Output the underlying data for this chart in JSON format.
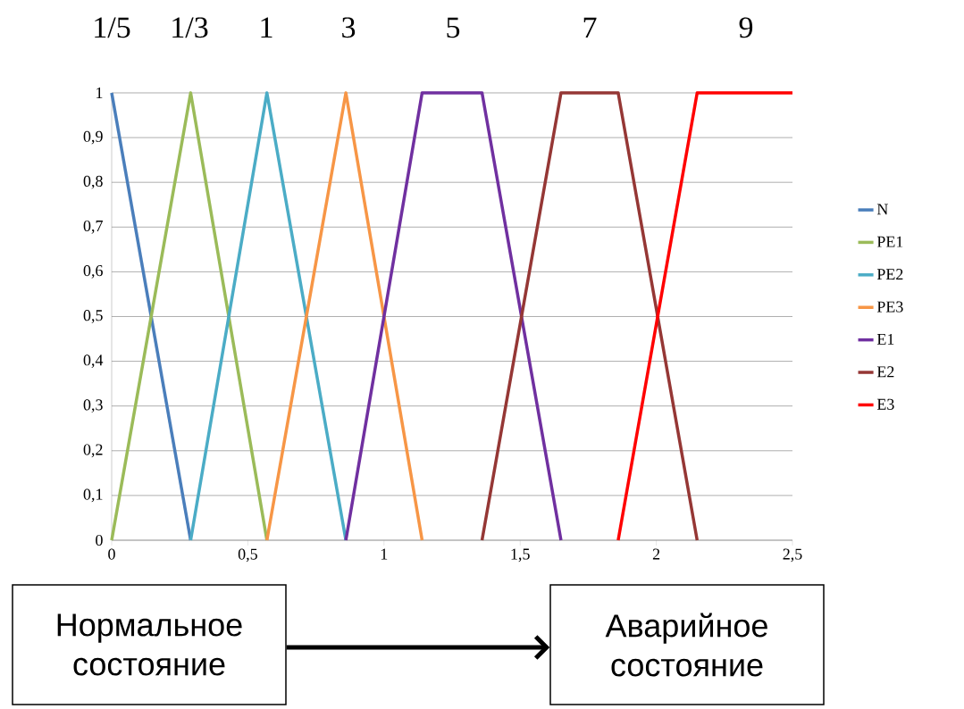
{
  "chart_data": {
    "type": "line",
    "series": [
      {
        "name": "N",
        "color": "#4a7ebb",
        "x": [
          0,
          0.29
        ],
        "values": [
          1,
          0
        ]
      },
      {
        "name": "PE1",
        "color": "#9bbb59",
        "x": [
          0,
          0.29,
          0.57
        ],
        "values": [
          0,
          1,
          0
        ]
      },
      {
        "name": "PE2",
        "color": "#4bacc6",
        "x": [
          0.29,
          0.57,
          0.86
        ],
        "values": [
          0,
          1,
          0
        ]
      },
      {
        "name": "PE3",
        "color": "#f79646",
        "x": [
          0.57,
          0.86,
          1.14
        ],
        "values": [
          0,
          1,
          0
        ]
      },
      {
        "name": "E1",
        "color": "#7030a0",
        "x": [
          0.86,
          1.14,
          1.36,
          1.65
        ],
        "values": [
          0,
          1,
          1,
          0
        ]
      },
      {
        "name": "E2",
        "color": "#953735",
        "x": [
          1.36,
          1.65,
          1.86,
          2.15
        ],
        "values": [
          0,
          1,
          1,
          0
        ]
      },
      {
        "name": "E3",
        "color": "#ff0000",
        "x": [
          1.86,
          2.15,
          2.5
        ],
        "values": [
          0,
          1,
          1
        ]
      }
    ],
    "xlim": [
      0,
      2.5
    ],
    "xticks": [
      0,
      {
        "value": 0.5,
        "label": "0,5"
      },
      1,
      {
        "value": 1.5,
        "label": "1,5"
      },
      2,
      {
        "value": 2.5,
        "label": "2,5"
      }
    ],
    "ylim": [
      0,
      1
    ],
    "yticks": [
      0,
      {
        "value": 0.1,
        "label": "0,1"
      },
      {
        "value": 0.2,
        "label": "0,2"
      },
      {
        "value": 0.3,
        "label": "0,3"
      },
      {
        "value": 0.4,
        "label": "0,4"
      },
      {
        "value": 0.5,
        "label": "0,5"
      },
      {
        "value": 0.6,
        "label": "0,6"
      },
      {
        "value": 0.7,
        "label": "0,7"
      },
      {
        "value": 0.8,
        "label": "0,8"
      },
      {
        "value": 0.9,
        "label": "0,9"
      },
      1
    ],
    "grid": "y",
    "legend": "right",
    "annotations": [
      "1/5",
      "1/3",
      "1",
      "3",
      "5",
      "7",
      "9",
      "Нормальное состояние",
      "Аварийное состояние"
    ]
  }
}
